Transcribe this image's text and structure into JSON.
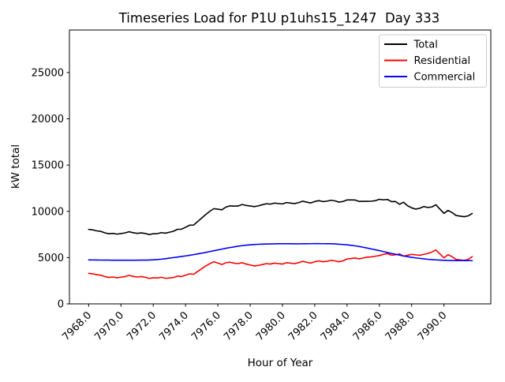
{
  "figure": {
    "background": "#ffffff",
    "accent_colors": {
      "total": "#000000",
      "residential": "#ff0000",
      "commercial": "#0000ff",
      "legend_border": "#cccccc"
    }
  },
  "chart_data": {
    "type": "line",
    "title": "Timeseries Load for P1U p1uhs15_1247  Day 333",
    "xlabel": "Hour of Year",
    "ylabel": "kW total",
    "xlim": [
      7966.81,
      7992.9
    ],
    "ylim": [
      0,
      29600
    ],
    "grid": false,
    "legend_position": "upper right",
    "legend_entries": [
      "Total",
      "Residential",
      "Commercial"
    ],
    "xticks": {
      "values": [
        7968,
        7970,
        7972,
        7974,
        7976,
        7978,
        7980,
        7982,
        7984,
        7986,
        7988,
        7990
      ],
      "labels": [
        "7968.0",
        "7970.0",
        "7972.0",
        "7974.0",
        "7976.0",
        "7978.0",
        "7980.0",
        "7982.0",
        "7984.0",
        "7986.0",
        "7988.0",
        "7990.0"
      ],
      "rotation": 45
    },
    "yticks": {
      "values": [
        0,
        5000,
        10000,
        15000,
        20000,
        25000
      ],
      "labels": [
        "0",
        "5000",
        "10000",
        "15000",
        "20000",
        "25000"
      ]
    },
    "x": [
      7968.0,
      7968.25,
      7968.5,
      7968.75,
      7969.0,
      7969.25,
      7969.5,
      7969.75,
      7970.0,
      7970.25,
      7970.5,
      7970.75,
      7971.0,
      7971.25,
      7971.5,
      7971.75,
      7972.0,
      7972.25,
      7972.5,
      7972.75,
      7973.0,
      7973.25,
      7973.5,
      7973.75,
      7974.0,
      7974.25,
      7974.5,
      7974.75,
      7975.0,
      7975.25,
      7975.5,
      7975.75,
      7976.0,
      7976.25,
      7976.5,
      7976.75,
      7977.0,
      7977.25,
      7977.5,
      7977.75,
      7978.0,
      7978.25,
      7978.5,
      7978.75,
      7979.0,
      7979.25,
      7979.5,
      7979.75,
      7980.0,
      7980.25,
      7980.5,
      7980.75,
      7981.0,
      7981.25,
      7981.5,
      7981.75,
      7982.0,
      7982.25,
      7982.5,
      7982.75,
      7983.0,
      7983.25,
      7983.5,
      7983.75,
      7984.0,
      7984.25,
      7984.5,
      7984.75,
      7985.0,
      7985.25,
      7985.5,
      7985.75,
      7986.0,
      7986.25,
      7986.5,
      7986.75,
      7987.0,
      7987.25,
      7987.5,
      7987.75,
      7988.0,
      7988.25,
      7988.5,
      7988.75,
      7989.0,
      7989.25,
      7989.5,
      7989.75,
      7990.0,
      7990.25,
      7990.5,
      7990.75,
      7991.0,
      7991.25,
      7991.5,
      7991.75
    ],
    "series": [
      {
        "name": "Total",
        "color": "#000000",
        "values": [
          8050,
          7995,
          7890,
          7835,
          7680,
          7575,
          7620,
          7538,
          7595,
          7665,
          7798,
          7690,
          7622,
          7675,
          7610,
          7490,
          7580,
          7590,
          7700,
          7640,
          7740,
          7850,
          8060,
          8070,
          8280,
          8500,
          8520,
          8900,
          9280,
          9660,
          10000,
          10290,
          10230,
          10170,
          10460,
          10590,
          10560,
          10580,
          10740,
          10640,
          10580,
          10510,
          10590,
          10710,
          10820,
          10780,
          10890,
          10845,
          10800,
          10950,
          10895,
          10840,
          10940,
          11095,
          11000,
          10905,
          11060,
          11160,
          11055,
          11100,
          11195,
          11130,
          11000,
          11070,
          11230,
          11230,
          11220,
          11070,
          11080,
          11080,
          11100,
          11150,
          11300,
          11250,
          11280,
          11050,
          11060,
          10760,
          10980,
          10600,
          10380,
          10240,
          10330,
          10520,
          10420,
          10470,
          10710,
          10245,
          9785,
          10100,
          9870,
          9550,
          9485,
          9420,
          9510,
          9770
        ]
      },
      {
        "name": "Residential",
        "color": "#ff0000",
        "values": [
          3300,
          3250,
          3150,
          3100,
          2950,
          2850,
          2900,
          2820,
          2880,
          2950,
          3080,
          2970,
          2900,
          2950,
          2880,
          2750,
          2820,
          2800,
          2870,
          2760,
          2800,
          2850,
          3000,
          2950,
          3100,
          3250,
          3200,
          3500,
          3800,
          4100,
          4350,
          4550,
          4400,
          4250,
          4450,
          4500,
          4400,
          4350,
          4450,
          4300,
          4200,
          4100,
          4150,
          4250,
          4350,
          4300,
          4400,
          4350,
          4300,
          4450,
          4400,
          4350,
          4450,
          4600,
          4500,
          4400,
          4550,
          4650,
          4550,
          4600,
          4700,
          4650,
          4550,
          4650,
          4850,
          4900,
          4950,
          4870,
          4960,
          5050,
          5080,
          5150,
          5220,
          5350,
          5430,
          5260,
          5300,
          5400,
          5150,
          5250,
          5350,
          5300,
          5250,
          5350,
          5450,
          5600,
          5830,
          5400,
          4970,
          5310,
          5100,
          4800,
          4750,
          4700,
          4800,
          5100
        ]
      },
      {
        "name": "Commercial",
        "color": "#0000ff",
        "values": [
          4750,
          4745,
          4740,
          4735,
          4730,
          4725,
          4720,
          4718,
          4715,
          4715,
          4718,
          4720,
          4722,
          4725,
          4730,
          4740,
          4760,
          4790,
          4830,
          4880,
          4940,
          5000,
          5060,
          5120,
          5180,
          5250,
          5320,
          5400,
          5480,
          5560,
          5650,
          5740,
          5830,
          5920,
          6010,
          6090,
          6160,
          6230,
          6290,
          6340,
          6380,
          6410,
          6440,
          6460,
          6470,
          6480,
          6490,
          6495,
          6500,
          6500,
          6495,
          6490,
          6490,
          6495,
          6500,
          6505,
          6510,
          6510,
          6505,
          6500,
          6495,
          6480,
          6450,
          6420,
          6380,
          6330,
          6270,
          6200,
          6120,
          6030,
          5940,
          5850,
          5750,
          5650,
          5550,
          5450,
          5360,
          5270,
          5180,
          5100,
          5030,
          4970,
          4915,
          4865,
          4820,
          4785,
          4755,
          4730,
          4710,
          4695,
          4685,
          4680,
          4675,
          4672,
          4670,
          4670
        ]
      }
    ]
  }
}
